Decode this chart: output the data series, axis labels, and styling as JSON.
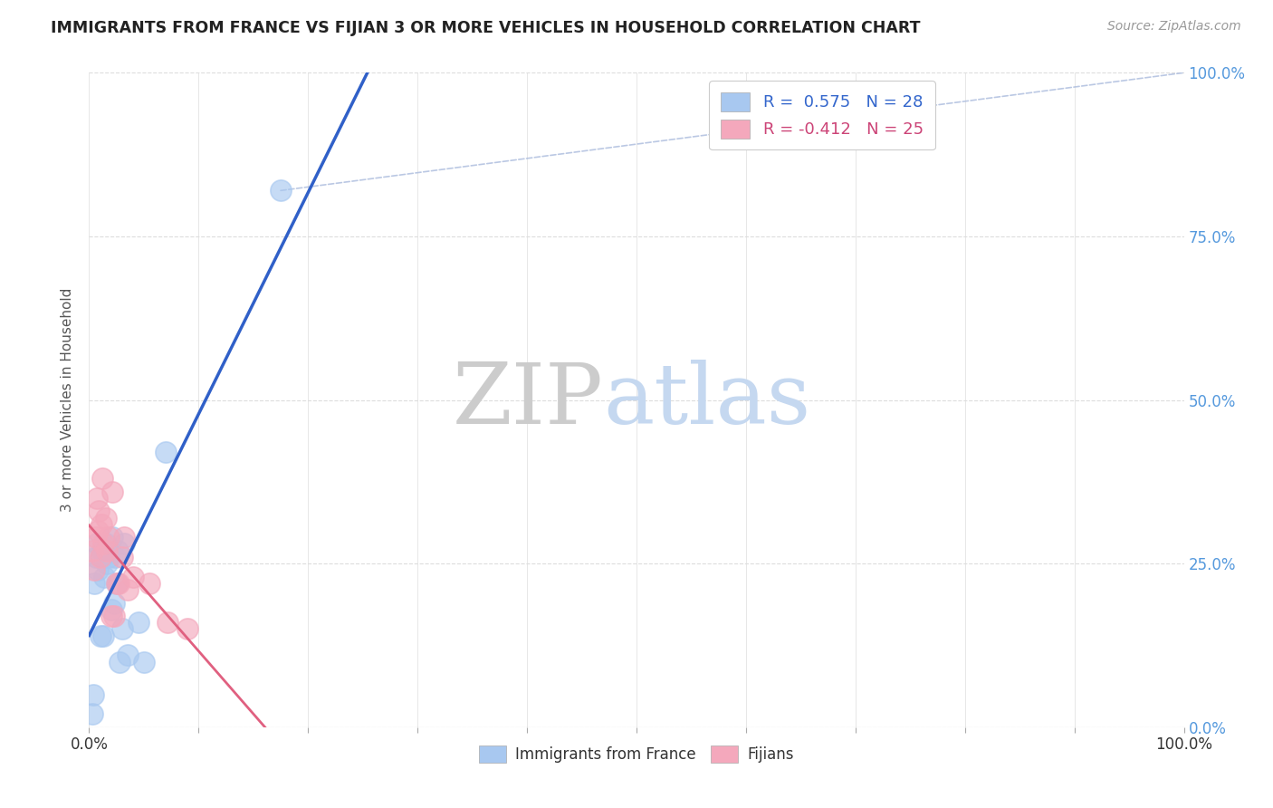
{
  "title": "IMMIGRANTS FROM FRANCE VS FIJIAN 3 OR MORE VEHICLES IN HOUSEHOLD CORRELATION CHART",
  "source": "Source: ZipAtlas.com",
  "ylabel": "3 or more Vehicles in Household",
  "legend_label1": "R =  0.575   N = 28",
  "legend_label2": "R = -0.412   N = 25",
  "legend_label1_bottom": "Immigrants from France",
  "legend_label2_bottom": "Fijians",
  "blue_color": "#A8C8F0",
  "pink_color": "#F4A8BC",
  "blue_line_color": "#3060C8",
  "pink_line_color": "#E06080",
  "blue_r": 0.575,
  "pink_r": -0.412,
  "blue_n": 28,
  "pink_n": 25,
  "blue_scatter_x": [
    0.3,
    0.4,
    0.5,
    0.6,
    0.7,
    0.8,
    1.0,
    1.1,
    1.2,
    1.3,
    1.4,
    1.5,
    1.6,
    1.8,
    2.0,
    2.1,
    2.3,
    2.4,
    2.5,
    2.6,
    2.8,
    3.0,
    3.2,
    3.5,
    4.5,
    5.0,
    7.0,
    17.5
  ],
  "blue_scatter_y": [
    2.0,
    5.0,
    22.0,
    26.0,
    28.0,
    24.0,
    14.0,
    26.0,
    27.0,
    14.0,
    23.0,
    28.0,
    25.0,
    26.0,
    18.0,
    29.0,
    19.0,
    26.0,
    22.0,
    27.0,
    10.0,
    15.0,
    28.0,
    11.0,
    16.0,
    10.0,
    42.0,
    82.0
  ],
  "pink_scatter_x": [
    0.3,
    0.5,
    0.6,
    0.7,
    0.8,
    0.9,
    1.0,
    1.1,
    1.2,
    1.3,
    1.5,
    1.6,
    1.8,
    2.0,
    2.1,
    2.3,
    2.5,
    2.7,
    3.0,
    3.2,
    3.5,
    4.0,
    5.5,
    7.2,
    9.0
  ],
  "pink_scatter_y": [
    27.0,
    24.0,
    29.0,
    35.0,
    30.0,
    33.0,
    26.0,
    31.0,
    38.0,
    28.0,
    32.0,
    27.0,
    29.0,
    17.0,
    36.0,
    17.0,
    22.0,
    22.0,
    26.0,
    29.0,
    21.0,
    23.0,
    22.0,
    16.0,
    15.0
  ],
  "watermark_zip": "ZIP",
  "watermark_atlas": "atlas",
  "background_color": "#FFFFFF",
  "grid_color": "#DDDDDD",
  "right_tick_color": "#5599DD",
  "xlim": [
    0,
    100
  ],
  "ylim": [
    0,
    100
  ],
  "yticks": [
    0,
    25,
    50,
    75,
    100
  ],
  "xticks": [
    0,
    10,
    20,
    30,
    40,
    50,
    60,
    70,
    80,
    90,
    100
  ]
}
